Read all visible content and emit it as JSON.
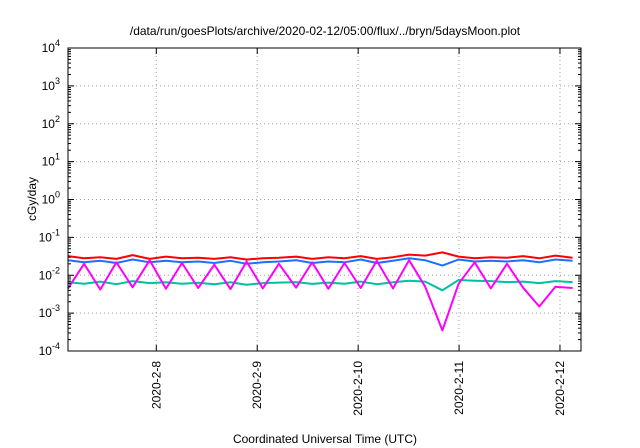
{
  "chart_data": {
    "type": "line",
    "title": "/data/run/goesPlots/archive/2020-02-12/05:00/flux/../bryn/5daysMoon.plot",
    "xlabel": "Coordinated Universal Time (UTC)",
    "ylabel": "cGy/day",
    "yscale": "log",
    "ylim": [
      0.0001,
      10000
    ],
    "y_ticks": [
      {
        "base": "10",
        "exp": "-4",
        "value": 0.0001
      },
      {
        "base": "10",
        "exp": "-3",
        "value": 0.001
      },
      {
        "base": "10",
        "exp": "-2",
        "value": 0.01
      },
      {
        "base": "10",
        "exp": "-1",
        "value": 0.1
      },
      {
        "base": "10",
        "exp": "0",
        "value": 1
      },
      {
        "base": "10",
        "exp": "1",
        "value": 10
      },
      {
        "base": "10",
        "exp": "2",
        "value": 100
      },
      {
        "base": "10",
        "exp": "3",
        "value": 1000
      },
      {
        "base": "10",
        "exp": "4",
        "value": 10000
      }
    ],
    "xlim": [
      "2020-02-07T03:00",
      "2020-02-12T05:00"
    ],
    "x_ticks": [
      {
        "label": "2020-2-8",
        "value": "2020-02-08T00:00"
      },
      {
        "label": "2020-2-9",
        "value": "2020-02-09T00:00"
      },
      {
        "label": "2020-2-10",
        "value": "2020-02-10T00:00"
      },
      {
        "label": "2020-2-11",
        "value": "2020-02-11T00:00"
      },
      {
        "label": "2020-2-12",
        "value": "2020-02-12T00:00"
      }
    ],
    "grid": true,
    "legend": "none",
    "series": [
      {
        "color": "#ff0000",
        "x_days": [
          0.0,
          0.16,
          0.32,
          0.48,
          0.64,
          0.81,
          0.97,
          1.13,
          1.29,
          1.45,
          1.61,
          1.77,
          1.93,
          2.09,
          2.26,
          2.42,
          2.58,
          2.74,
          2.9,
          3.06,
          3.22,
          3.38,
          3.54,
          3.71,
          3.87,
          4.03,
          4.19,
          4.35,
          4.51,
          4.67,
          4.83,
          5.0
        ],
        "values": [
          0.032,
          0.028,
          0.03,
          0.027,
          0.034,
          0.027,
          0.031,
          0.028,
          0.029,
          0.027,
          0.03,
          0.026,
          0.028,
          0.029,
          0.031,
          0.027,
          0.03,
          0.028,
          0.032,
          0.027,
          0.03,
          0.035,
          0.033,
          0.04,
          0.031,
          0.028,
          0.03,
          0.029,
          0.032,
          0.028,
          0.033,
          0.029
        ]
      },
      {
        "color": "#1e6fff",
        "x_days": [
          0.0,
          0.16,
          0.32,
          0.48,
          0.64,
          0.81,
          0.97,
          1.13,
          1.29,
          1.45,
          1.61,
          1.77,
          1.93,
          2.09,
          2.26,
          2.42,
          2.58,
          2.74,
          2.9,
          3.06,
          3.22,
          3.38,
          3.54,
          3.71,
          3.87,
          4.03,
          4.19,
          4.35,
          4.51,
          4.67,
          4.83,
          5.0
        ],
        "values": [
          0.025,
          0.022,
          0.024,
          0.021,
          0.026,
          0.022,
          0.024,
          0.022,
          0.023,
          0.021,
          0.024,
          0.02,
          0.022,
          0.023,
          0.025,
          0.021,
          0.023,
          0.022,
          0.026,
          0.021,
          0.024,
          0.028,
          0.025,
          0.018,
          0.026,
          0.023,
          0.024,
          0.023,
          0.025,
          0.022,
          0.026,
          0.024
        ]
      },
      {
        "color": "#00c0a0",
        "x_days": [
          0.0,
          0.16,
          0.32,
          0.48,
          0.64,
          0.81,
          0.97,
          1.13,
          1.29,
          1.45,
          1.61,
          1.77,
          1.93,
          2.09,
          2.26,
          2.42,
          2.58,
          2.74,
          2.9,
          3.06,
          3.22,
          3.38,
          3.54,
          3.71,
          3.87,
          4.03,
          4.19,
          4.35,
          4.51,
          4.67,
          4.83,
          5.0
        ],
        "values": [
          0.0065,
          0.006,
          0.0068,
          0.0058,
          0.007,
          0.0062,
          0.0065,
          0.006,
          0.0063,
          0.0058,
          0.0065,
          0.0056,
          0.0062,
          0.0064,
          0.0066,
          0.0059,
          0.0064,
          0.006,
          0.0068,
          0.0058,
          0.0065,
          0.0072,
          0.0068,
          0.004,
          0.0075,
          0.0072,
          0.007,
          0.0066,
          0.0068,
          0.0062,
          0.007,
          0.0066
        ]
      },
      {
        "color": "#ff00ff",
        "x_days": [
          0.0,
          0.16,
          0.32,
          0.48,
          0.64,
          0.81,
          0.97,
          1.13,
          1.29,
          1.45,
          1.61,
          1.77,
          1.93,
          2.09,
          2.26,
          2.42,
          2.58,
          2.74,
          2.9,
          3.06,
          3.22,
          3.38,
          3.54,
          3.71,
          3.87,
          4.03,
          4.19,
          4.35,
          4.51,
          4.67,
          4.83,
          5.0
        ],
        "values": [
          0.0045,
          0.02,
          0.0042,
          0.022,
          0.0048,
          0.025,
          0.0044,
          0.021,
          0.0046,
          0.019,
          0.0043,
          0.023,
          0.0045,
          0.02,
          0.0047,
          0.022,
          0.0044,
          0.021,
          0.0046,
          0.024,
          0.0045,
          0.025,
          0.005,
          0.00035,
          0.006,
          0.022,
          0.0045,
          0.02,
          0.0047,
          0.0015,
          0.005,
          0.0046
        ]
      }
    ]
  }
}
